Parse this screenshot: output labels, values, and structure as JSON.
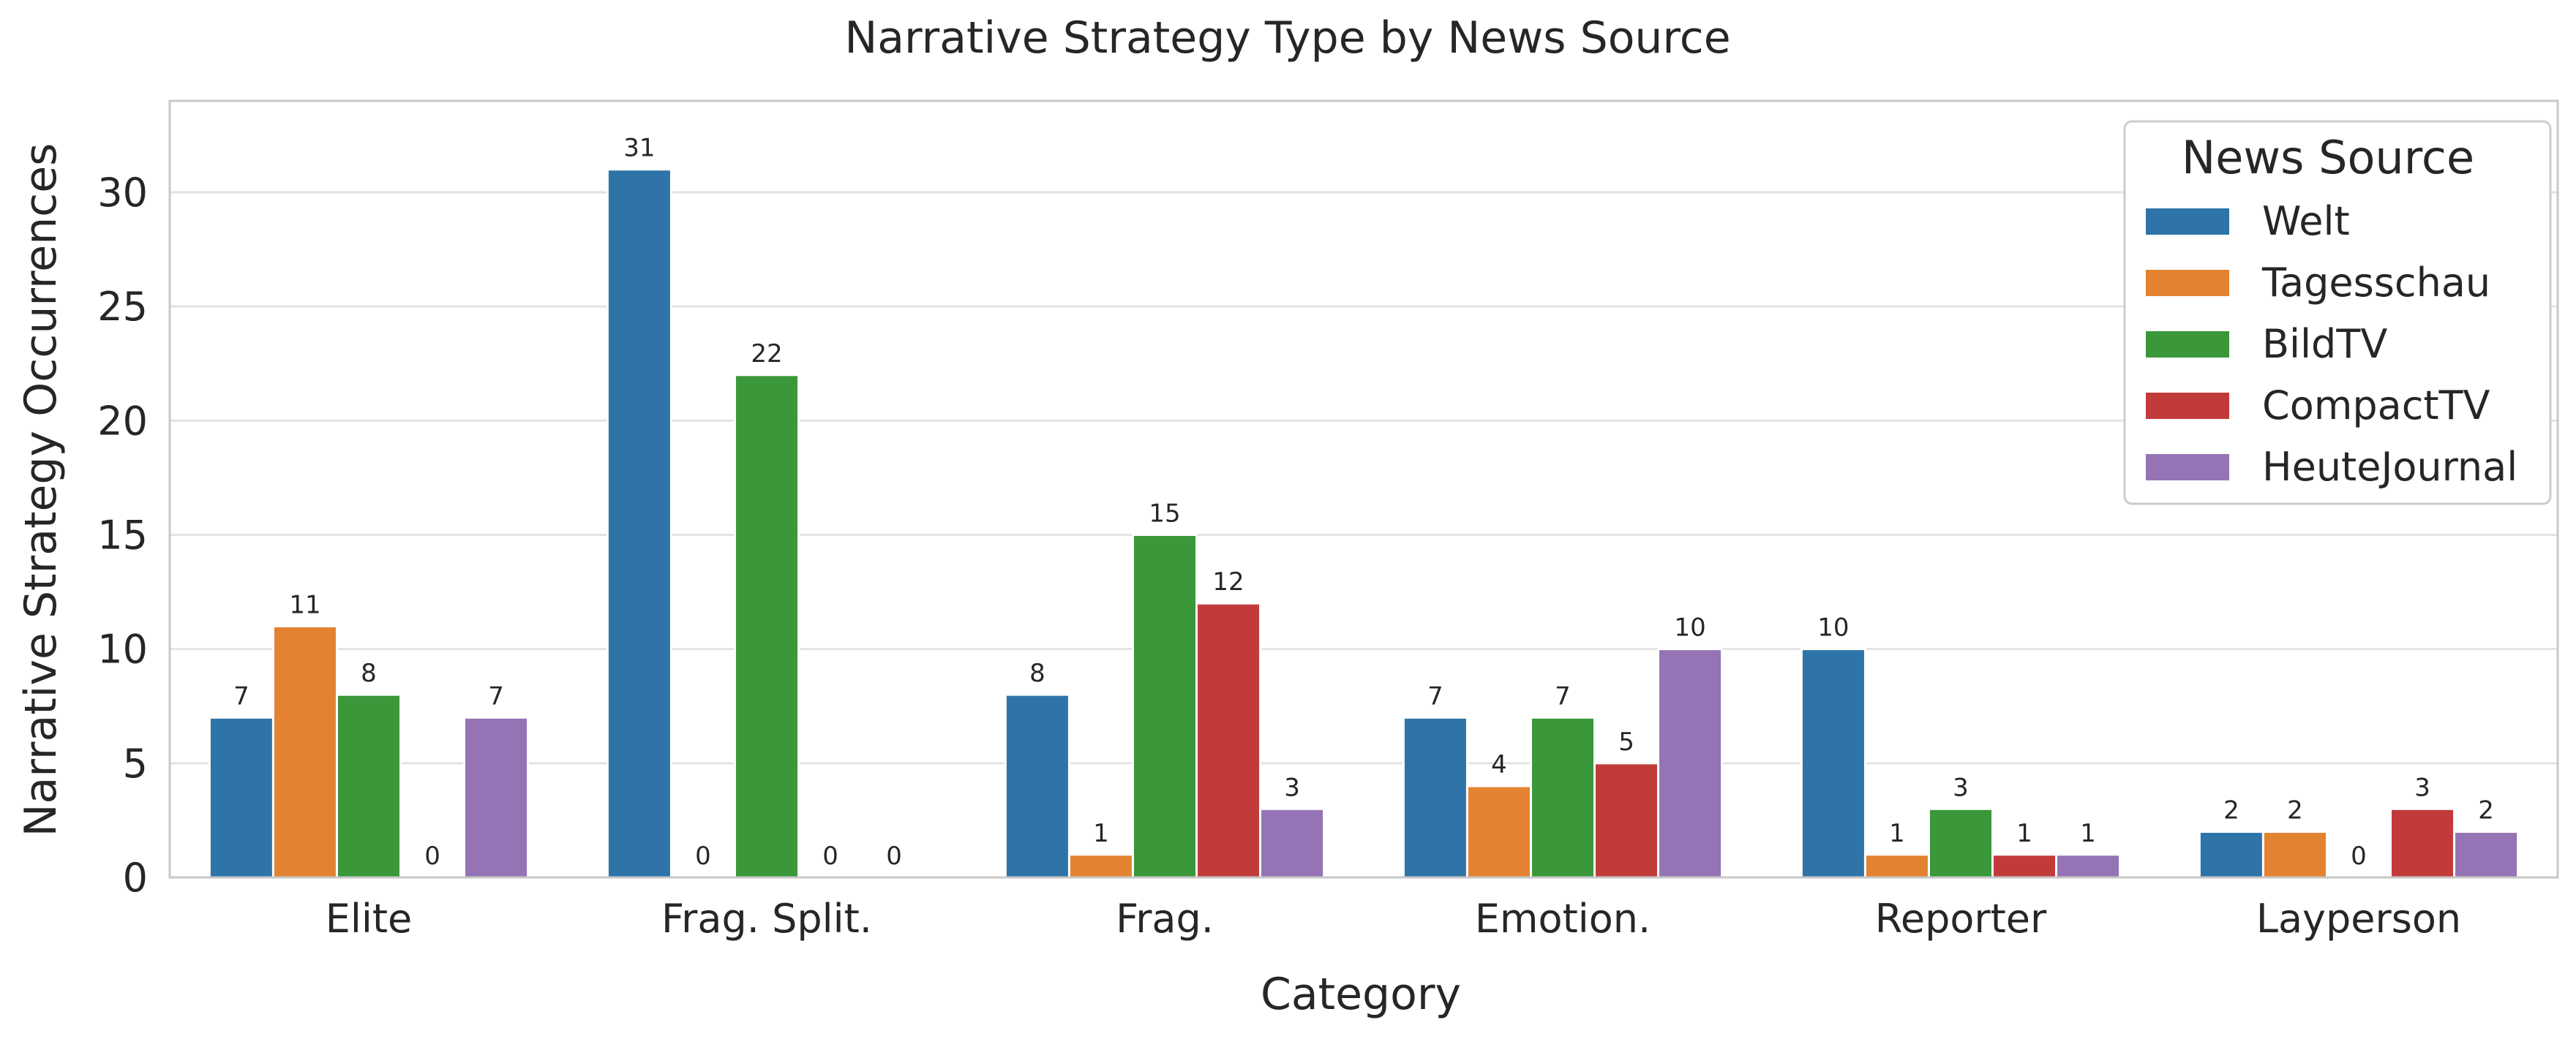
{
  "chart_data": {
    "type": "bar",
    "title": "Narrative Strategy Type by News Source",
    "xlabel": "Category",
    "ylabel": "Narrative Strategy Occurrences",
    "categories": [
      "Elite",
      "Frag. Split.",
      "Frag.",
      "Emotion.",
      "Reporter",
      "Layperson"
    ],
    "series": [
      {
        "name": "Welt",
        "color": "#2e74a8",
        "values": [
          7,
          31,
          8,
          7,
          10,
          2
        ]
      },
      {
        "name": "Tagesschau",
        "color": "#e38331",
        "values": [
          11,
          0,
          1,
          4,
          1,
          2
        ]
      },
      {
        "name": "BildTV",
        "color": "#3a973a",
        "values": [
          8,
          22,
          15,
          7,
          3,
          0
        ]
      },
      {
        "name": "CompactTV",
        "color": "#c23b3b",
        "values": [
          0,
          0,
          12,
          5,
          1,
          3
        ]
      },
      {
        "name": "HeuteJournal",
        "color": "#9474b4",
        "values": [
          7,
          0,
          3,
          10,
          1,
          2
        ]
      }
    ],
    "ylim": [
      0,
      34
    ],
    "yticks": [
      0,
      5,
      10,
      15,
      20,
      25,
      30
    ],
    "grid": true,
    "legend": {
      "title": "News Source",
      "position": "top-right"
    }
  }
}
